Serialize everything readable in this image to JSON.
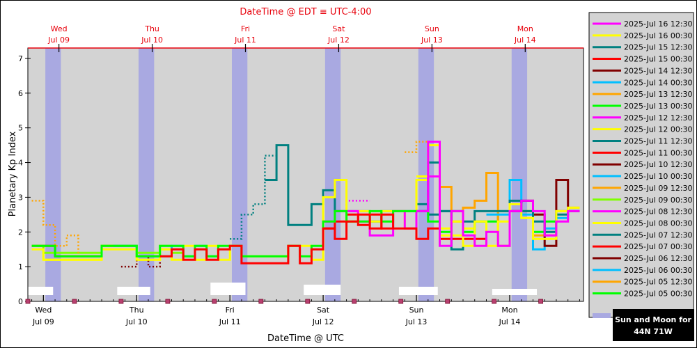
{
  "chart_data": {
    "type": "line",
    "title": "DateTime @ EDT ≡ UTC-4:00",
    "xlabel": "DateTime @ UTC",
    "ylabel": "Planetary Kp Index",
    "ylim": [
      0,
      7.3
    ],
    "xlim": [
      "2025-07-08 12:00",
      "2025-07-15 07:00"
    ],
    "grid": false,
    "legend_position": "right",
    "y_ticks": [
      "0",
      "1",
      "2",
      "3",
      "4",
      "5",
      "6",
      "7"
    ],
    "top_ticks": [
      {
        "day": "Wed",
        "date": "Jul 09",
        "hour": 4
      },
      {
        "day": "Thu",
        "date": "Jul 10",
        "hour": 28
      },
      {
        "day": "Fri",
        "date": "Jul 11",
        "hour": 52
      },
      {
        "day": "Sat",
        "date": "Jul 12",
        "hour": 76
      },
      {
        "day": "Sun",
        "date": "Jul 13",
        "hour": 100
      },
      {
        "day": "Mon",
        "date": "Jul 14",
        "hour": 124
      }
    ],
    "bottom_ticks": [
      {
        "day": "Wed",
        "date": "Jul 09",
        "hour": 0
      },
      {
        "day": "Thu",
        "date": "Jul 10",
        "hour": 24
      },
      {
        "day": "Fri",
        "date": "Jul 11",
        "hour": 48
      },
      {
        "day": "Sat",
        "date": "Jul 12",
        "hour": 72
      },
      {
        "day": "Sun",
        "date": "Jul 13",
        "hour": 96
      },
      {
        "day": "Mon",
        "date": "Jul 14",
        "hour": 120
      }
    ],
    "moon_bands": [
      [
        0.5,
        4.5
      ],
      [
        24.5,
        28.5
      ],
      [
        48.5,
        52.5
      ],
      [
        72.5,
        76.5
      ],
      [
        96.5,
        100.5
      ],
      [
        120.5,
        124.5
      ]
    ],
    "sun_bars": [
      [
        -5,
        2.5
      ],
      [
        19,
        27.5
      ],
      [
        43,
        52
      ],
      [
        67,
        76.5
      ],
      [
        91.5,
        101.5
      ],
      [
        115.5,
        127
      ]
    ],
    "note": {
      "line1": "Sun and Moon for",
      "line2": "44N 71W"
    },
    "series": [
      {
        "name": "2025-Jul 16 12:30",
        "color": "#ff00ff",
        "dotted": false,
        "x": [
          96,
          99,
          102,
          105,
          108,
          111,
          114,
          117,
          120,
          123,
          126,
          129,
          132,
          135
        ],
        "y": [
          2.6,
          4.6,
          1.6,
          2.6,
          1.9,
          1.6,
          2.0,
          1.6,
          2.6,
          2.9,
          2.6,
          1.9,
          2.3,
          2.6
        ]
      },
      {
        "name": "2025-Jul 16 00:30",
        "color": "#ffff00",
        "dotted": false,
        "x": [
          96,
          99,
          102,
          105,
          108,
          111,
          114,
          117,
          120,
          123,
          126,
          129,
          132,
          135
        ],
        "y": [
          3.6,
          4.5,
          1.9,
          2.3,
          1.6,
          2.3,
          1.6,
          2.3,
          2.8,
          2.4,
          1.8,
          1.8,
          2.6,
          2.7
        ]
      },
      {
        "name": "2025-Jul 15 12:30",
        "color": "#008080",
        "dotted": false,
        "x": [
          96,
          99,
          102,
          105,
          108,
          111,
          114,
          117,
          120,
          123,
          126,
          129,
          132,
          135
        ],
        "y": [
          2.6,
          4.0,
          2.6,
          1.5,
          2.3,
          2.6,
          2.6,
          2.6,
          2.9,
          2.6,
          2.3,
          2.0,
          2.5,
          2.6
        ]
      },
      {
        "name": "2025-Jul 15 00:30",
        "color": "#ff0000",
        "dotted": false,
        "x": [
          30,
          33,
          36,
          39,
          42,
          45,
          48,
          51,
          54,
          57,
          60,
          63,
          66,
          69,
          72,
          75,
          78,
          81,
          84,
          87,
          90,
          93,
          96,
          99,
          102,
          105,
          108,
          111
        ],
        "y": [
          1.3,
          1.5,
          1.2,
          1.5,
          1.2,
          1.5,
          1.6,
          1.1,
          1.1,
          1.1,
          1.1,
          1.6,
          1.1,
          1.5,
          2.1,
          1.8,
          2.3,
          2.5,
          2.1,
          2.5,
          2.1,
          2.1,
          1.8,
          2.1,
          1.8,
          1.8,
          1.8,
          1.8
        ]
      },
      {
        "name": "2025-Jul 14 12:30",
        "color": "#800000",
        "dotted": false,
        "x": [
          120,
          123,
          126,
          129,
          132,
          135
        ],
        "y": [
          2.6,
          2.9,
          2.5,
          1.6,
          3.5,
          2.6
        ]
      },
      {
        "name": "2025-Jul 14 00:30",
        "color": "#00bfff",
        "dotted": false,
        "x": [
          114,
          117,
          120,
          123,
          126,
          129,
          132,
          135
        ],
        "y": [
          2.5,
          2.5,
          3.5,
          2.5,
          1.5,
          2.1,
          2.4,
          2.6
        ]
      },
      {
        "name": "2025-Jul 13 12:30",
        "color": "#ffa500",
        "dotted": false,
        "x": [
          102,
          105,
          108,
          111,
          114,
          117,
          120,
          123,
          126,
          129,
          132,
          135
        ],
        "y": [
          3.3,
          2.3,
          2.7,
          2.9,
          3.7,
          1.6,
          2.6,
          2.6,
          1.9,
          1.9,
          2.6,
          2.7
        ]
      },
      {
        "name": "2025-Jul 13 00:30",
        "color": "#00ff00",
        "dotted": false,
        "x": [
          -3,
          0,
          3,
          6,
          9,
          12,
          15,
          18,
          21,
          24,
          27,
          30,
          33,
          36,
          39,
          42,
          45,
          48,
          51,
          54,
          57,
          60,
          63,
          66,
          69,
          72,
          75,
          78,
          81,
          84,
          87,
          90,
          93,
          96,
          99,
          102,
          105,
          108,
          111,
          114,
          117,
          120,
          123,
          126,
          129,
          132,
          135
        ],
        "y": [
          1.6,
          1.6,
          1.3,
          1.3,
          1.3,
          1.3,
          1.6,
          1.6,
          1.6,
          1.3,
          1.3,
          1.6,
          1.6,
          1.3,
          1.6,
          1.3,
          1.6,
          1.6,
          1.3,
          1.3,
          1.3,
          1.3,
          1.6,
          1.3,
          1.6,
          2.3,
          2.6,
          2.3,
          2.3,
          2.6,
          2.3,
          2.6,
          2.6,
          2.6,
          2.3,
          2.0,
          2.6,
          2.0,
          2.3,
          2.3,
          2.6,
          2.6,
          2.6,
          2.0,
          2.3,
          2.6,
          2.6
        ]
      },
      {
        "name": "2025-Jul 12 12:30",
        "color": "#ff00ff",
        "dotted": false,
        "x": [
          72,
          75,
          78,
          81,
          84,
          87,
          90,
          93,
          96,
          99
        ],
        "y": [
          2.3,
          2.6,
          2.6,
          2.3,
          1.9,
          1.9,
          2.6,
          2.1,
          2.6,
          3.6
        ]
      },
      {
        "name": "2025-Jul 12 00:30",
        "color": "#ffff00",
        "dotted": false,
        "x": [
          -3,
          0,
          3,
          6,
          9,
          12,
          15,
          18,
          21,
          24,
          27,
          30,
          33,
          36,
          39,
          42,
          45,
          48,
          51,
          54,
          57,
          60,
          63,
          66,
          69,
          72,
          75,
          78,
          81,
          84,
          87,
          90,
          93,
          96,
          99,
          102,
          105,
          108
        ],
        "y": [
          1.5,
          1.2,
          1.2,
          1.2,
          1.2,
          1.2,
          1.5,
          1.5,
          1.5,
          1.2,
          1.2,
          1.5,
          1.2,
          1.6,
          1.2,
          1.6,
          1.2,
          1.6,
          1.3,
          1.3,
          1.3,
          1.3,
          1.6,
          1.6,
          1.2,
          3.0,
          3.5,
          2.3,
          2.6,
          2.3,
          2.6,
          2.6,
          2.1,
          3.5,
          3.6,
          2.1,
          1.9,
          2.1
        ]
      },
      {
        "name": "2025-Jul 11 12:30",
        "color": "#008080",
        "dotted": false,
        "x": [
          57,
          60,
          63,
          66,
          69,
          72,
          75,
          78,
          81,
          84,
          87,
          90,
          93,
          96,
          99,
          102,
          105
        ],
        "y": [
          3.5,
          4.5,
          2.2,
          2.2,
          2.8,
          3.2,
          2.6,
          2.6,
          2.6,
          2.3,
          2.6,
          2.6,
          2.6,
          2.8,
          2.5,
          2.6,
          2.6
        ]
      },
      {
        "name": "2025-Jul 11 00:30",
        "color": "#ff0000",
        "dotted": false,
        "x": [
          72,
          75,
          78,
          81,
          84,
          87
        ],
        "y": [
          2.1,
          2.3,
          2.5,
          2.2,
          2.5,
          2.1
        ]
      },
      {
        "name": "2025-Jul 10 12:30",
        "color": "#800000",
        "dotted": true,
        "x": [
          20,
          24,
          27,
          30
        ],
        "y": [
          1.0,
          1.3,
          1.0,
          1.3
        ]
      },
      {
        "name": "2025-Jul 10 00:30",
        "color": "#00bfff",
        "dotted": false,
        "x": [
          18,
          21,
          24,
          27,
          30,
          33,
          36,
          39,
          42
        ],
        "y": [
          1.6,
          1.6,
          1.3,
          1.3,
          1.3,
          1.6,
          1.3,
          1.6,
          1.3
        ]
      },
      {
        "name": "2025-Jul 09 12:30",
        "color": "#ffa500",
        "dotted": true,
        "x": [
          -3,
          0,
          3,
          6,
          9
        ],
        "y": [
          2.9,
          2.2,
          1.6,
          1.9,
          1.3
        ]
      },
      {
        "name": "2025-Jul 09 00:30",
        "color": "#7fff00",
        "dotted": false,
        "x": [
          -3,
          0,
          3,
          6,
          9,
          12,
          15,
          18,
          21,
          24,
          27,
          30,
          33
        ],
        "y": [
          1.6,
          1.4,
          1.4,
          1.4,
          1.4,
          1.4,
          1.6,
          1.6,
          1.6,
          1.4,
          1.4,
          1.6,
          1.4
        ]
      },
      {
        "name": "2025-Jul 08 12:30",
        "color": "#ff00ff",
        "dotted": true,
        "x": [
          75,
          78,
          81
        ],
        "y": [
          2.6,
          2.9,
          2.9
        ]
      },
      {
        "name": "2025-Jul 08 00:30",
        "color": "#ffff00",
        "dotted": false,
        "x": [
          0,
          3,
          6,
          9,
          12,
          15,
          18,
          21,
          24,
          27,
          30
        ],
        "y": [
          1.2,
          1.2,
          1.2,
          1.2,
          1.2,
          1.6,
          1.6,
          1.6,
          1.2,
          1.2,
          1.5
        ]
      },
      {
        "name": "2025-Jul 07 12:30",
        "color": "#008080",
        "dotted": true,
        "x": [
          48,
          51,
          54,
          57
        ],
        "y": [
          1.8,
          2.5,
          2.8,
          4.2
        ]
      },
      {
        "name": "2025-Jul 07 00:30",
        "color": "#ff0000",
        "dotted": false,
        "x": [
          -3,
          0,
          3,
          6,
          9,
          12,
          15,
          18,
          21,
          24,
          27
        ],
        "y": [
          1.6,
          1.6,
          1.3,
          1.3,
          1.3,
          1.3,
          1.6,
          1.6,
          1.6,
          1.3,
          1.3
        ]
      },
      {
        "name": "2025-Jul 06 12:30",
        "color": "#800000",
        "dotted": false,
        "x": [],
        "y": []
      },
      {
        "name": "2025-Jul 06 00:30",
        "color": "#00bfff",
        "dotted": false,
        "x": [],
        "y": []
      },
      {
        "name": "2025-Jul 05 12:30",
        "color": "#ffa500",
        "dotted": true,
        "x": [
          93,
          96
        ],
        "y": [
          4.3,
          4.6
        ]
      },
      {
        "name": "2025-Jul 05 00:30",
        "color": "#00ff00",
        "dotted": false,
        "x": [],
        "y": []
      }
    ]
  }
}
